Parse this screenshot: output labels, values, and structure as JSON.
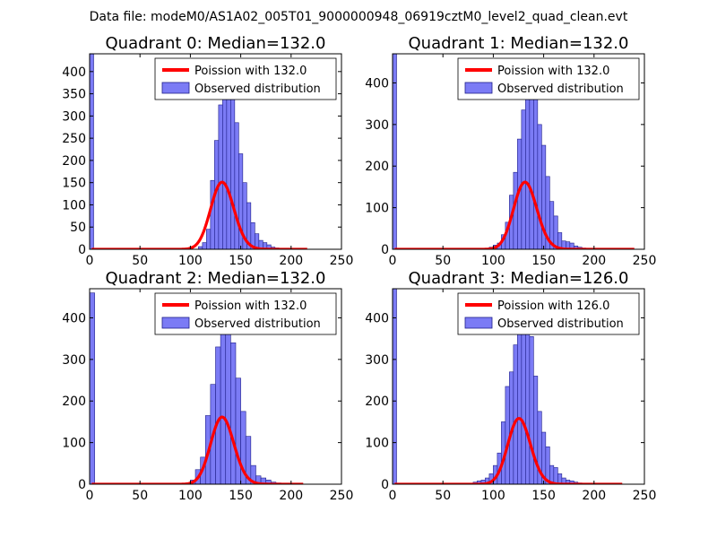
{
  "figure_title": "Data file: modeM0/AS1A02_005T01_9000000948_06919cztM0_level2_quad_clean.evt",
  "colors": {
    "bar_fill": "#7b7bf5",
    "bar_edge": "#1f1f8a",
    "poisson_line": "#ff0000",
    "background": "#ffffff",
    "axis": "#000000"
  },
  "chart_data": [
    {
      "type": "bar",
      "title": "Quadrant 0: Median=132.0",
      "xlim": [
        0,
        250
      ],
      "ylim": [
        0,
        440
      ],
      "xticks": [
        0,
        50,
        100,
        150,
        200,
        250
      ],
      "yticks": [
        0,
        50,
        100,
        150,
        200,
        250,
        300,
        350,
        400
      ],
      "legend": [
        "Poission with 132.0",
        "Observed distribution"
      ],
      "legend_position": "top-right",
      "poisson_mean": 132.0,
      "poisson_scale": 4350,
      "zero_bin_count": 440,
      "bin_width": 4,
      "bins": [
        108,
        112,
        116,
        120,
        124,
        128,
        132,
        136,
        140,
        144,
        148,
        152,
        156,
        160,
        164,
        168,
        172,
        176,
        180,
        184,
        188,
        192
      ],
      "counts": [
        6,
        15,
        45,
        155,
        245,
        325,
        410,
        380,
        355,
        285,
        215,
        150,
        105,
        60,
        35,
        20,
        15,
        10,
        5,
        3,
        2,
        1
      ],
      "curve_x_range": [
        2,
        216
      ]
    },
    {
      "type": "bar",
      "title": "Quadrant 1: Median=132.0",
      "xlim": [
        0,
        250
      ],
      "ylim": [
        0,
        470
      ],
      "xticks": [
        0,
        50,
        100,
        150,
        200,
        250
      ],
      "yticks": [
        0,
        100,
        200,
        300,
        400
      ],
      "legend": [
        "Poission with 132.0",
        "Observed distribution"
      ],
      "legend_position": "top-right",
      "poisson_mean": 132.0,
      "poisson_scale": 4650,
      "zero_bin_count": 470,
      "bin_width": 4,
      "bins": [
        96,
        100,
        104,
        108,
        112,
        116,
        120,
        124,
        128,
        132,
        136,
        140,
        144,
        148,
        152,
        156,
        160,
        164,
        168,
        172,
        176,
        180,
        184,
        188,
        192
      ],
      "counts": [
        5,
        10,
        15,
        35,
        65,
        130,
        185,
        265,
        335,
        415,
        450,
        375,
        300,
        250,
        175,
        115,
        80,
        40,
        20,
        18,
        15,
        8,
        5,
        3,
        2
      ],
      "curve_x_range": [
        2,
        240
      ]
    },
    {
      "type": "bar",
      "title": "Quadrant 2: Median=132.0",
      "xlim": [
        0,
        250
      ],
      "ylim": [
        0,
        470
      ],
      "xticks": [
        0,
        50,
        100,
        150,
        200,
        250
      ],
      "yticks": [
        0,
        100,
        200,
        300,
        400
      ],
      "legend": [
        "Poission with 132.0",
        "Observed distribution"
      ],
      "legend_position": "top-right",
      "poisson_mean": 132.0,
      "poisson_scale": 4650,
      "zero_bin_count": 460,
      "bin_width": 5,
      "bins": [
        100,
        105,
        110,
        115,
        120,
        125,
        130,
        135,
        140,
        145,
        150,
        155,
        160,
        165,
        170,
        175,
        180,
        185,
        190
      ],
      "counts": [
        10,
        35,
        65,
        165,
        240,
        330,
        420,
        405,
        340,
        255,
        175,
        115,
        45,
        20,
        15,
        10,
        5,
        3,
        2
      ],
      "curve_x_range": [
        2,
        212
      ]
    },
    {
      "type": "bar",
      "title": "Quadrant 3: Median=126.0",
      "xlim": [
        0,
        250
      ],
      "ylim": [
        0,
        470
      ],
      "xticks": [
        0,
        50,
        100,
        150,
        200,
        250
      ],
      "yticks": [
        0,
        100,
        200,
        300,
        400
      ],
      "legend": [
        "Poission with 126.0",
        "Observed distribution"
      ],
      "legend_position": "top-right",
      "poisson_mean": 126.0,
      "poisson_scale": 4450,
      "zero_bin_count": 470,
      "bin_width": 4,
      "bins": [
        80,
        84,
        88,
        92,
        96,
        100,
        104,
        108,
        112,
        116,
        120,
        124,
        128,
        132,
        136,
        140,
        144,
        148,
        152,
        156,
        160,
        164,
        168,
        172,
        176,
        180,
        184,
        188
      ],
      "counts": [
        5,
        8,
        10,
        15,
        25,
        45,
        75,
        150,
        235,
        270,
        335,
        390,
        440,
        405,
        355,
        260,
        175,
        125,
        90,
        45,
        40,
        25,
        15,
        10,
        8,
        5,
        3,
        2
      ],
      "curve_x_range": [
        2,
        228
      ]
    }
  ]
}
